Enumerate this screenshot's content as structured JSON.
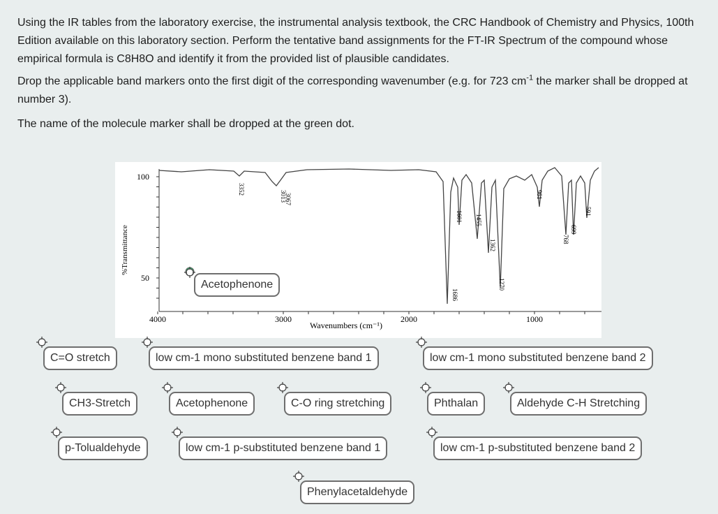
{
  "instructions": {
    "p1": "Using the IR tables from the laboratory exercise, the instrumental analysis textbook, the CRC Handbook of Chemistry and Physics, 100th Edition available on this laboratory section.  Perform the tentative band assignments for the FT-IR Spectrum of the compound whose empirical formula is C8H8O and identify it from the provided list of plausible candidates.",
    "p2_before": "Drop the applicable band markers onto the first digit of the corresponding wavenumber (e.g.  for 723 cm",
    "p2_sup": "-1",
    "p2_after": " the marker shall be dropped at number 3).",
    "p3": "The name of the molecule marker shall be dropped at the green dot."
  },
  "spectrum": {
    "y_label": "%Transmittance",
    "y_ticks": [
      "100",
      "50"
    ],
    "x_ticks": [
      "4000",
      "3000",
      "2000",
      "1000"
    ],
    "x_label": "Wavenumbers (cm⁻¹)",
    "peak_labels": [
      "3352",
      "3013",
      "3067",
      "1686",
      "1601",
      "1455",
      "1362",
      "1270",
      "961",
      "768",
      "699",
      "591"
    ]
  },
  "placed_markers": [
    "Acetophenone"
  ],
  "markers": [
    "C=O stretch",
    "low cm-1 mono substituted benzene band 1",
    "low cm-1 mono substituted benzene band 2",
    "CH3-Stretch",
    "Acetophenone",
    "C-O ring stretching",
    "Phthalan",
    "Aldehyde C-H Stretching",
    "p-Tolualdehyde",
    "low cm-1 p-substituted benzene band 1",
    "low cm-1 p-substituted benzene band 2",
    "Phenylacetaldehyde"
  ]
}
